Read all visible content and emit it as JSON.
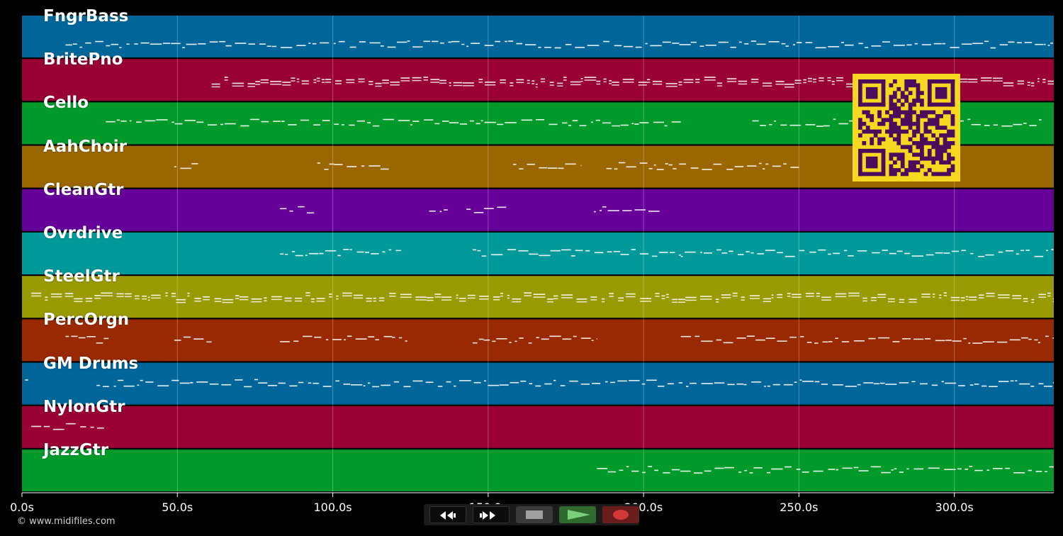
{
  "tracks": [
    {
      "name": "FngrBass",
      "color": "#006699"
    },
    {
      "name": "BritePno",
      "color": "#990033"
    },
    {
      "name": "Cello",
      "color": "#009a2b"
    },
    {
      "name": "AahChoir",
      "color": "#996600"
    },
    {
      "name": "CleanGtr",
      "color": "#660099"
    },
    {
      "name": "Ovrdrive",
      "color": "#009999"
    },
    {
      "name": "SteelGtr",
      "color": "#999900"
    },
    {
      "name": "PercOrgn",
      "color": "#992900"
    },
    {
      "name": "GM Drums",
      "color": "#006699"
    },
    {
      "name": "NylonGtr",
      "color": "#990033"
    },
    {
      "name": "JazzGtr",
      "color": "#009a2b"
    }
  ],
  "time_axis": {
    "unit": "s",
    "max_seconds": 332,
    "ticks": [
      "0.0s",
      "50.0s",
      "100.0s",
      "150.0s",
      "200.0s",
      "250.0s",
      "300.0s"
    ],
    "tick_values": [
      0,
      50,
      100,
      150,
      200,
      250,
      300
    ]
  },
  "copyright": "© www.midifiles.com",
  "transport": {
    "rewind": "rewind-icon",
    "fast_forward": "fast-forward-icon",
    "stop": "stop-icon",
    "play": "play-icon",
    "record": "record-icon"
  },
  "qr_code": {
    "color": "#f5d81f",
    "module_color": "#4b0c5c"
  },
  "note_color": "#ffffff"
}
